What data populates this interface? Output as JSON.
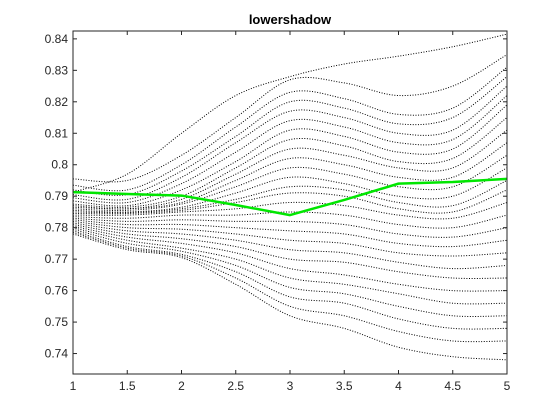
{
  "chart_data": {
    "type": "line",
    "title": "lowershadow",
    "xlabel": "",
    "ylabel": "",
    "xlim": [
      1,
      5
    ],
    "ylim": [
      0.7335,
      0.8425
    ],
    "x_ticks": [
      1,
      1.5,
      2,
      2.5,
      3,
      3.5,
      4,
      4.5,
      5
    ],
    "x_tick_labels": [
      "1",
      "1.5",
      "2",
      "2.5",
      "3",
      "3.5",
      "4",
      "4.5",
      "5"
    ],
    "y_ticks": [
      0.74,
      0.75,
      0.76,
      0.77,
      0.78,
      0.79,
      0.8,
      0.81,
      0.82,
      0.83,
      0.84
    ],
    "y_tick_labels": [
      "0.74",
      "0.75",
      "0.76",
      "0.77",
      "0.78",
      "0.79",
      "0.8",
      "0.81",
      "0.82",
      "0.83",
      "0.84"
    ],
    "grid": false,
    "legend": "none",
    "colors": {
      "ensemble": "#000000",
      "highlight": "#00e600",
      "axes": "#262626"
    },
    "x": [
      1,
      1.5,
      2,
      2.5,
      3,
      3.5,
      4,
      4.5,
      5
    ],
    "highlight_series": {
      "values": [
        0.7913,
        0.7907,
        0.7902,
        0.7872,
        0.784,
        0.7888,
        0.794,
        0.7945,
        0.7955
      ]
    },
    "ensemble_series": [
      {
        "values": [
          0.7913,
          0.797,
          0.81,
          0.822,
          0.828,
          0.832,
          0.8345,
          0.8375,
          0.8415
        ]
      },
      {
        "values": [
          0.7955,
          0.795,
          0.803,
          0.815,
          0.827,
          0.826,
          0.822,
          0.825,
          0.835
        ]
      },
      {
        "values": [
          0.7935,
          0.792,
          0.8,
          0.812,
          0.823,
          0.821,
          0.816,
          0.818,
          0.831
        ]
      },
      {
        "values": [
          0.792,
          0.7905,
          0.798,
          0.809,
          0.82,
          0.818,
          0.813,
          0.815,
          0.828
        ]
      },
      {
        "values": [
          0.7905,
          0.789,
          0.796,
          0.807,
          0.817,
          0.815,
          0.81,
          0.811,
          0.825
        ]
      },
      {
        "values": [
          0.7895,
          0.788,
          0.794,
          0.804,
          0.814,
          0.812,
          0.807,
          0.808,
          0.822
        ]
      },
      {
        "values": [
          0.7885,
          0.787,
          0.792,
          0.801,
          0.811,
          0.809,
          0.804,
          0.805,
          0.819
        ]
      },
      {
        "values": [
          0.7875,
          0.7865,
          0.79,
          0.799,
          0.808,
          0.806,
          0.801,
          0.802,
          0.815
        ]
      },
      {
        "values": [
          0.787,
          0.786,
          0.789,
          0.797,
          0.805,
          0.803,
          0.799,
          0.799,
          0.811
        ]
      },
      {
        "values": [
          0.7865,
          0.786,
          0.788,
          0.795,
          0.802,
          0.8,
          0.796,
          0.796,
          0.807
        ]
      },
      {
        "values": [
          0.786,
          0.7855,
          0.7875,
          0.793,
          0.799,
          0.797,
          0.793,
          0.793,
          0.803
        ]
      },
      {
        "values": [
          0.7855,
          0.785,
          0.7865,
          0.791,
          0.796,
          0.794,
          0.79,
          0.79,
          0.799
        ]
      },
      {
        "values": [
          0.785,
          0.7848,
          0.786,
          0.789,
          0.793,
          0.792,
          0.788,
          0.787,
          0.795
        ]
      },
      {
        "values": [
          0.7845,
          0.7845,
          0.7855,
          0.788,
          0.791,
          0.79,
          0.786,
          0.785,
          0.792
        ]
      },
      {
        "values": [
          0.784,
          0.784,
          0.785,
          0.786,
          0.788,
          0.787,
          0.784,
          0.783,
          0.788
        ]
      },
      {
        "values": [
          0.7835,
          0.783,
          0.784,
          0.784,
          0.785,
          0.784,
          0.781,
          0.78,
          0.784
        ]
      },
      {
        "values": [
          0.783,
          0.782,
          0.7825,
          0.782,
          0.782,
          0.781,
          0.778,
          0.777,
          0.78
        ]
      },
      {
        "values": [
          0.7825,
          0.781,
          0.781,
          0.78,
          0.779,
          0.778,
          0.775,
          0.774,
          0.776
        ]
      },
      {
        "values": [
          0.782,
          0.78,
          0.7795,
          0.778,
          0.776,
          0.775,
          0.772,
          0.771,
          0.772
        ]
      },
      {
        "values": [
          0.7815,
          0.779,
          0.778,
          0.776,
          0.773,
          0.772,
          0.769,
          0.767,
          0.768
        ]
      },
      {
        "values": [
          0.781,
          0.778,
          0.7765,
          0.774,
          0.77,
          0.769,
          0.766,
          0.764,
          0.764
        ]
      },
      {
        "values": [
          0.7805,
          0.777,
          0.775,
          0.772,
          0.767,
          0.765,
          0.762,
          0.76,
          0.76
        ]
      },
      {
        "values": [
          0.78,
          0.776,
          0.7735,
          0.77,
          0.764,
          0.762,
          0.759,
          0.756,
          0.756
        ]
      },
      {
        "values": [
          0.7795,
          0.775,
          0.7725,
          0.768,
          0.761,
          0.759,
          0.755,
          0.752,
          0.752
        ]
      },
      {
        "values": [
          0.779,
          0.774,
          0.7715,
          0.766,
          0.758,
          0.756,
          0.751,
          0.748,
          0.748
        ]
      },
      {
        "values": [
          0.7785,
          0.7735,
          0.771,
          0.764,
          0.755,
          0.752,
          0.747,
          0.744,
          0.744
        ]
      },
      {
        "values": [
          0.778,
          0.773,
          0.7705,
          0.762,
          0.752,
          0.748,
          0.742,
          0.739,
          0.738
        ]
      }
    ]
  }
}
